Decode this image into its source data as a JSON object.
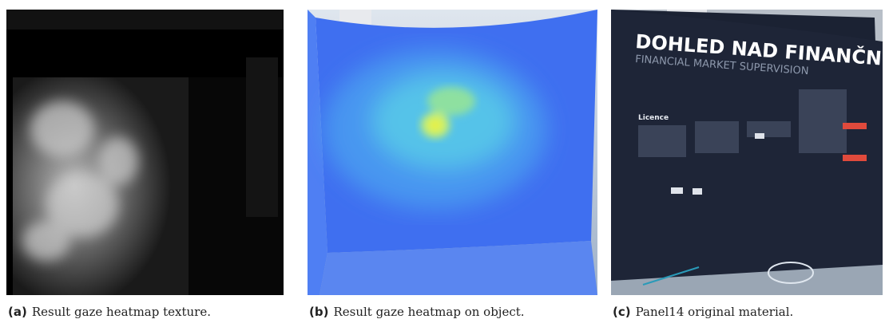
{
  "figures": [
    {
      "label": "(a)",
      "caption": "Result gaze heatmap texture."
    },
    {
      "label": "(b)",
      "caption": "Result gaze heatmap on object."
    },
    {
      "label": "(c)",
      "caption": "Panel14 original material."
    }
  ],
  "panel_text": {
    "title": "DOHLED NAD FINANČNÍM TRHEM",
    "subtitle": "FINANCIAL MARKET SUPERVISION",
    "section": "Licence"
  }
}
